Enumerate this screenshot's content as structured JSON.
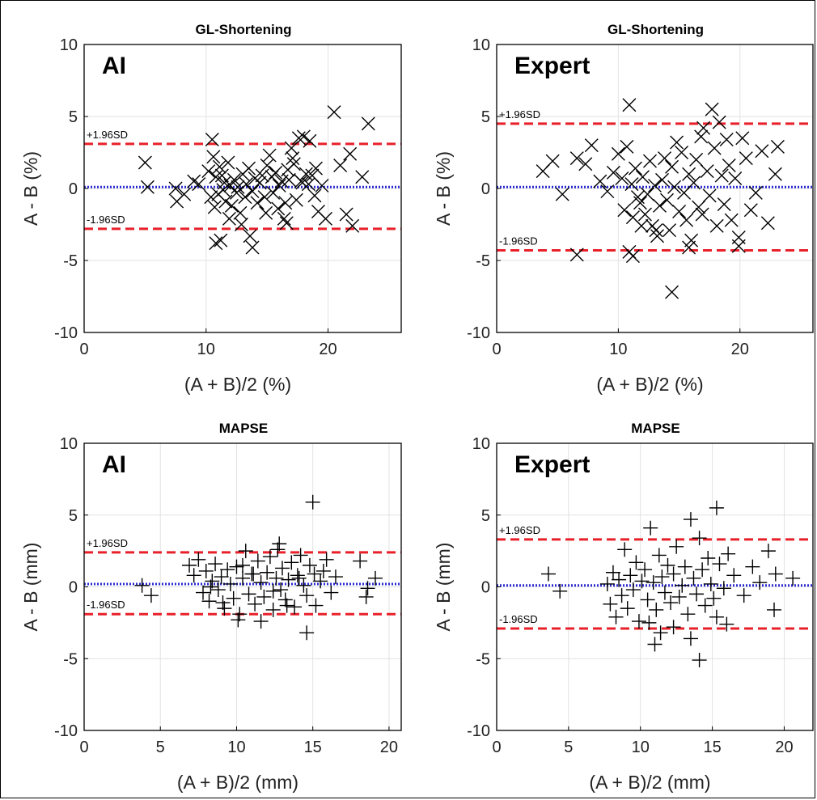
{
  "panels": [
    {
      "title": "GL-Shortening",
      "badge": "AI",
      "xlabel": "(A + B)/2 (%)",
      "ylabel": "A - B (%)",
      "xticks": [
        "0",
        "10",
        "20"
      ],
      "yticks": [
        "10",
        "5",
        "0",
        "-5",
        "-10"
      ],
      "upper_label": "+1.96SD",
      "lower_label": "-1.96SD"
    },
    {
      "title": "GL-Shortening",
      "badge": "Expert",
      "xlabel": "(A + B)/2 (%)",
      "ylabel": "A - B (%)",
      "xticks": [
        "0",
        "10",
        "20"
      ],
      "yticks": [
        "10",
        "5",
        "0",
        "-5",
        "-10"
      ],
      "upper_label": "+1.96SD",
      "lower_label": "-1.96SD"
    },
    {
      "title": "MAPSE",
      "badge": "AI",
      "xlabel": "(A + B)/2 (mm)",
      "ylabel": "A - B (mm)",
      "xticks": [
        "0",
        "5",
        "10",
        "15",
        "20"
      ],
      "yticks": [
        "10",
        "5",
        "0",
        "-5",
        "-10"
      ],
      "upper_label": "+1.96SD",
      "lower_label": "-1.96SD"
    },
    {
      "title": "MAPSE",
      "badge": "Expert",
      "xlabel": "(A + B)/2 (mm)",
      "ylabel": "A - B (mm)",
      "xticks": [
        "0",
        "5",
        "10",
        "15",
        "20"
      ],
      "yticks": [
        "10",
        "5",
        "0",
        "-5",
        "-10"
      ],
      "upper_label": "+1.96SD",
      "lower_label": "-1.96SD"
    }
  ],
  "chart_data": [
    {
      "type": "scatter",
      "title": "GL-Shortening",
      "xlabel": "(A + B)/2 (%)",
      "ylabel": "A - B (%)",
      "xlim": [
        0,
        26
      ],
      "ylim": [
        -10,
        10
      ],
      "xticks": [
        0,
        10,
        20
      ],
      "yticks": [
        -10,
        -5,
        0,
        5,
        10
      ],
      "grid": true,
      "marker": "x",
      "mean": 0.1,
      "upper_loa": 3.1,
      "lower_loa": -2.8,
      "colors": {
        "points": "#000000",
        "loa": "#e8202a",
        "mean": "#2a2ad0"
      },
      "x": [
        5.0,
        5.2,
        7.5,
        7.6,
        8.2,
        9.0,
        9.4,
        10.2,
        10.5,
        10.6,
        10.7,
        10.8,
        11.0,
        11.1,
        11.3,
        11.4,
        11.5,
        11.6,
        11.8,
        12.0,
        12.1,
        12.3,
        12.5,
        12.6,
        12.8,
        13.0,
        13.2,
        13.3,
        13.5,
        13.6,
        13.8,
        14.0,
        14.2,
        14.4,
        14.6,
        14.8,
        15.0,
        15.2,
        15.4,
        15.5,
        15.7,
        15.9,
        16.0,
        16.2,
        16.4,
        16.5,
        16.7,
        16.8,
        17.0,
        17.2,
        17.4,
        17.6,
        17.8,
        18.0,
        18.2,
        18.4,
        18.5,
        18.7,
        18.9,
        19.0,
        19.2,
        19.5,
        19.8,
        20.5,
        21.0,
        21.5,
        21.8,
        22.0,
        22.8,
        23.3,
        10.8,
        11.2,
        13.8,
        12.9,
        11.9,
        14.9,
        16.6,
        17.1,
        17.9,
        10.4
      ],
      "y": [
        1.8,
        0.1,
        0.0,
        -0.9,
        -0.4,
        0.5,
        0.3,
        1.2,
        3.4,
        2.2,
        -1.3,
        0.8,
        -0.4,
        1.5,
        0.9,
        -0.1,
        0.4,
        -0.9,
        1.8,
        0.2,
        -1.2,
        0.6,
        -0.3,
        0.1,
        -1.7,
        1.0,
        -0.6,
        0.3,
        1.4,
        -3.3,
        -0.2,
        0.7,
        -1.0,
        0.4,
        0.9,
        -0.6,
        1.6,
        2.3,
        0.8,
        -0.3,
        1.1,
        -1.4,
        0.2,
        0.5,
        -2.1,
        -1.0,
        1.3,
        0.6,
        2.8,
        1.7,
        -0.8,
        3.5,
        0.5,
        3.6,
        1.0,
        0.3,
        3.3,
        0.9,
        -0.5,
        1.4,
        -1.6,
        0.2,
        -2.1,
        5.3,
        1.6,
        -1.8,
        2.4,
        -2.6,
        0.8,
        4.5,
        -3.8,
        -3.6,
        -4.1,
        -2.5,
        -2.1,
        -1.7,
        -2.4,
        2.1,
        0.4,
        -0.6
      ]
    },
    {
      "type": "scatter",
      "title": "GL-Shortening",
      "xlabel": "(A + B)/2 (%)",
      "ylabel": "A - B (%)",
      "xlim": [
        0,
        26
      ],
      "ylim": [
        -10,
        10
      ],
      "xticks": [
        0,
        10,
        20
      ],
      "yticks": [
        -10,
        -5,
        0,
        5,
        10
      ],
      "grid": true,
      "marker": "x",
      "mean": 0.1,
      "upper_loa": 4.5,
      "lower_loa": -4.3,
      "colors": {
        "points": "#000000",
        "loa": "#e8202a",
        "mean": "#2a2ad0"
      },
      "x": [
        3.8,
        4.6,
        5.4,
        6.6,
        7.3,
        7.8,
        8.5,
        9.1,
        9.6,
        10.0,
        10.3,
        10.5,
        10.7,
        10.9,
        11.1,
        11.2,
        11.4,
        11.6,
        11.8,
        12.0,
        12.2,
        12.4,
        12.6,
        12.8,
        13.0,
        13.2,
        13.4,
        13.6,
        13.8,
        14.0,
        14.2,
        14.4,
        14.6,
        14.8,
        15.0,
        15.2,
        15.4,
        15.6,
        15.8,
        16.0,
        16.2,
        16.4,
        16.6,
        16.8,
        17.0,
        17.3,
        17.5,
        17.7,
        17.9,
        18.1,
        18.3,
        18.5,
        18.7,
        18.9,
        19.1,
        19.3,
        19.6,
        19.9,
        20.2,
        20.5,
        20.9,
        21.3,
        21.8,
        22.3,
        22.9,
        23.1,
        6.6,
        10.9,
        11.2,
        14.4,
        19.9,
        11.9,
        13.1,
        15.8,
        16.9
      ],
      "y": [
        1.2,
        1.9,
        -0.4,
        2.1,
        1.7,
        3.0,
        0.5,
        -0.2,
        1.1,
        2.4,
        0.7,
        -1.5,
        2.9,
        5.8,
        0.3,
        -2.0,
        1.4,
        -0.6,
        -1.0,
        0.8,
        -1.8,
        -0.4,
        1.9,
        -2.6,
        0.2,
        -3.3,
        -1.2,
        0.6,
        2.1,
        -0.8,
        -2.9,
        1.5,
        0.1,
        3.2,
        -1.6,
        2.5,
        -0.3,
        -2.2,
        1.0,
        -3.6,
        0.4,
        2.0,
        -1.3,
        3.6,
        4.2,
        1.2,
        -0.5,
        5.5,
        2.8,
        -2.6,
        4.6,
        0.9,
        -1.1,
        3.4,
        1.6,
        -2.2,
        0.7,
        -3.4,
        3.5,
        2.1,
        -1.5,
        -0.3,
        2.6,
        -2.4,
        1.0,
        2.9,
        -4.6,
        -4.4,
        -4.7,
        -7.2,
        -4.0,
        -2.6,
        -2.9,
        -4.1,
        -1.8
      ]
    },
    {
      "type": "scatter",
      "title": "MAPSE",
      "xlabel": "(A + B)/2 (mm)",
      "ylabel": "A - B (mm)",
      "xlim": [
        0,
        20.8
      ],
      "ylim": [
        -10,
        10
      ],
      "xticks": [
        0,
        5,
        10,
        15,
        20
      ],
      "yticks": [
        -10,
        -5,
        0,
        5,
        10
      ],
      "grid": true,
      "marker": "+",
      "mean": 0.2,
      "upper_loa": 2.4,
      "lower_loa": -1.9,
      "colors": {
        "points": "#000000",
        "loa": "#e8202a",
        "mean": "#2a2ad0"
      },
      "x": [
        3.8,
        4.4,
        6.9,
        7.2,
        7.5,
        7.8,
        8.0,
        8.2,
        8.4,
        8.6,
        8.8,
        9.0,
        9.2,
        9.4,
        9.6,
        9.8,
        10.0,
        10.2,
        10.4,
        10.6,
        10.8,
        11.0,
        11.2,
        11.4,
        11.6,
        11.8,
        12.0,
        12.2,
        12.4,
        12.6,
        12.8,
        13.0,
        13.2,
        13.4,
        13.6,
        13.8,
        14.0,
        14.2,
        14.4,
        14.6,
        14.8,
        15.0,
        15.2,
        15.5,
        15.9,
        16.5,
        18.1,
        18.6,
        19.1,
        10.1,
        11.6,
        12.4,
        12.7,
        14.6,
        15.1,
        16.2,
        18.5,
        8.3,
        9.1,
        13.3,
        10.4,
        11.1,
        12.9,
        14.1,
        15.7
      ],
      "y": [
        0.1,
        -0.6,
        1.5,
        0.8,
        1.9,
        -0.4,
        1.1,
        -1.0,
        0.4,
        1.6,
        -0.2,
        0.7,
        -1.5,
        1.2,
        0.2,
        -0.8,
        1.4,
        -1.9,
        0.6,
        2.5,
        -0.5,
        0.9,
        -1.2,
        1.8,
        0.3,
        -0.7,
        1.0,
        2.1,
        -0.3,
        0.6,
        3.0,
        1.3,
        -0.9,
        0.5,
        1.7,
        -1.4,
        0.8,
        2.2,
        0.1,
        -0.6,
        1.5,
        5.9,
        -1.3,
        0.4,
        1.9,
        0.7,
        1.8,
        -0.1,
        0.6,
        -2.3,
        -2.4,
        -1.6,
        2.6,
        -3.2,
        0.9,
        -0.4,
        -0.7,
        0.0,
        -1.1,
        -1.3,
        1.5,
        0.9,
        -0.2,
        0.6,
        1.1
      ]
    },
    {
      "type": "scatter",
      "title": "MAPSE",
      "xlabel": "(A + B)/2 (mm)",
      "ylabel": "A - B (mm)",
      "xlim": [
        0,
        22
      ],
      "ylim": [
        -10,
        10
      ],
      "xticks": [
        0,
        5,
        10,
        15,
        20
      ],
      "yticks": [
        -10,
        -5,
        0,
        5,
        10
      ],
      "grid": true,
      "marker": "+",
      "mean": 0.1,
      "upper_loa": 3.3,
      "lower_loa": -2.9,
      "colors": {
        "points": "#000000",
        "loa": "#e8202a",
        "mean": "#2a2ad0"
      },
      "x": [
        3.6,
        4.4,
        7.7,
        7.9,
        8.1,
        8.3,
        8.5,
        8.7,
        8.9,
        9.1,
        9.3,
        9.5,
        9.7,
        9.9,
        10.1,
        10.3,
        10.5,
        10.7,
        10.9,
        11.1,
        11.3,
        11.5,
        11.7,
        11.9,
        12.1,
        12.3,
        12.5,
        12.7,
        12.9,
        13.1,
        13.3,
        13.5,
        13.7,
        13.9,
        14.1,
        14.3,
        14.5,
        14.7,
        14.9,
        15.1,
        15.3,
        15.5,
        15.8,
        16.1,
        16.5,
        17.2,
        17.8,
        18.3,
        18.9,
        19.4,
        20.6,
        11.0,
        11.4,
        13.5,
        14.1,
        15.3,
        16.0,
        19.3,
        10.6,
        12.3
      ],
      "y": [
        0.9,
        -0.3,
        0.2,
        -1.2,
        1.0,
        -2.1,
        0.5,
        -0.6,
        2.6,
        -1.5,
        0.8,
        -0.2,
        1.7,
        -2.4,
        0.4,
        1.2,
        -0.9,
        4.1,
        0.3,
        -1.6,
        2.2,
        0.7,
        -0.4,
        1.5,
        -1.1,
        0.9,
        2.8,
        -0.7,
        0.1,
        1.4,
        -1.9,
        4.7,
        0.6,
        -0.5,
        3.4,
        1.2,
        -1.3,
        2.0,
        0.2,
        -0.8,
        5.5,
        1.6,
        -0.1,
        2.3,
        0.8,
        -0.6,
        1.4,
        0.3,
        2.5,
        0.9,
        0.6,
        -4.0,
        -3.2,
        -3.6,
        -5.1,
        -2.1,
        -2.6,
        -1.6,
        -2.5,
        -2.8
      ]
    }
  ]
}
